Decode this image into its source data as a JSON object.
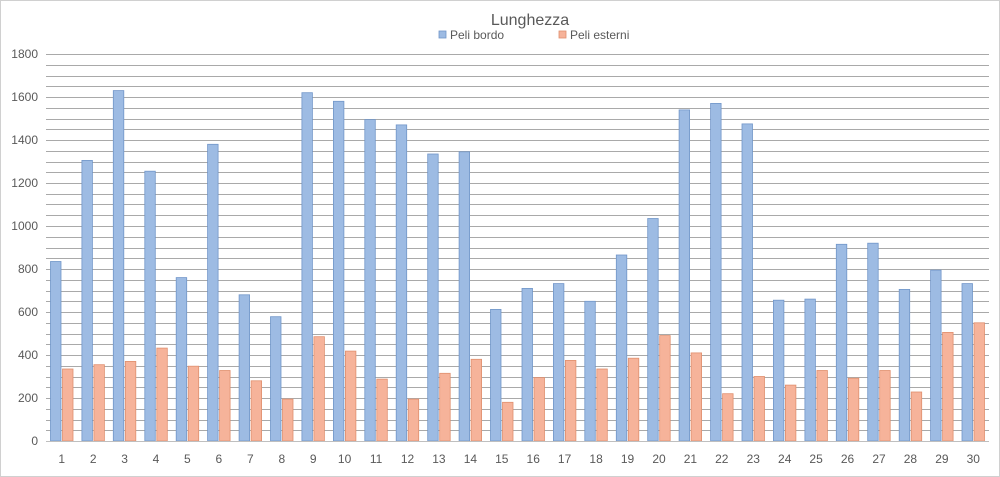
{
  "chart_data": {
    "type": "bar",
    "title": "Lunghezza",
    "xlabel": "",
    "ylabel": "",
    "ylim": [
      0,
      1800
    ],
    "y_ticks": [
      0,
      200,
      400,
      600,
      800,
      1000,
      1200,
      1400,
      1600,
      1800
    ],
    "y_minor_step": 50,
    "grid": true,
    "legend_position": "top",
    "categories": [
      "1",
      "2",
      "3",
      "4",
      "5",
      "6",
      "7",
      "8",
      "9",
      "10",
      "11",
      "12",
      "13",
      "14",
      "15",
      "16",
      "17",
      "18",
      "19",
      "20",
      "21",
      "22",
      "23",
      "24",
      "25",
      "26",
      "27",
      "28",
      "29",
      "30"
    ],
    "series": [
      {
        "name": "Peli bordo",
        "color": "#9dbbe3",
        "stroke": "#7196c9",
        "values": [
          835,
          1305,
          1630,
          1255,
          760,
          1380,
          680,
          578,
          1620,
          1580,
          1495,
          1470,
          1335,
          1345,
          612,
          710,
          732,
          650,
          865,
          1035,
          1540,
          1570,
          1475,
          655,
          660,
          915,
          920,
          705,
          795,
          732
        ]
      },
      {
        "name": "Peli esterni",
        "color": "#f6b39a",
        "stroke": "#e08f6e",
        "values": [
          335,
          355,
          370,
          432,
          348,
          328,
          280,
          195,
          485,
          418,
          288,
          195,
          315,
          380,
          180,
          295,
          375,
          335,
          385,
          490,
          410,
          220,
          300,
          260,
          328,
          292,
          328,
          228,
          505,
          550
        ]
      }
    ]
  }
}
